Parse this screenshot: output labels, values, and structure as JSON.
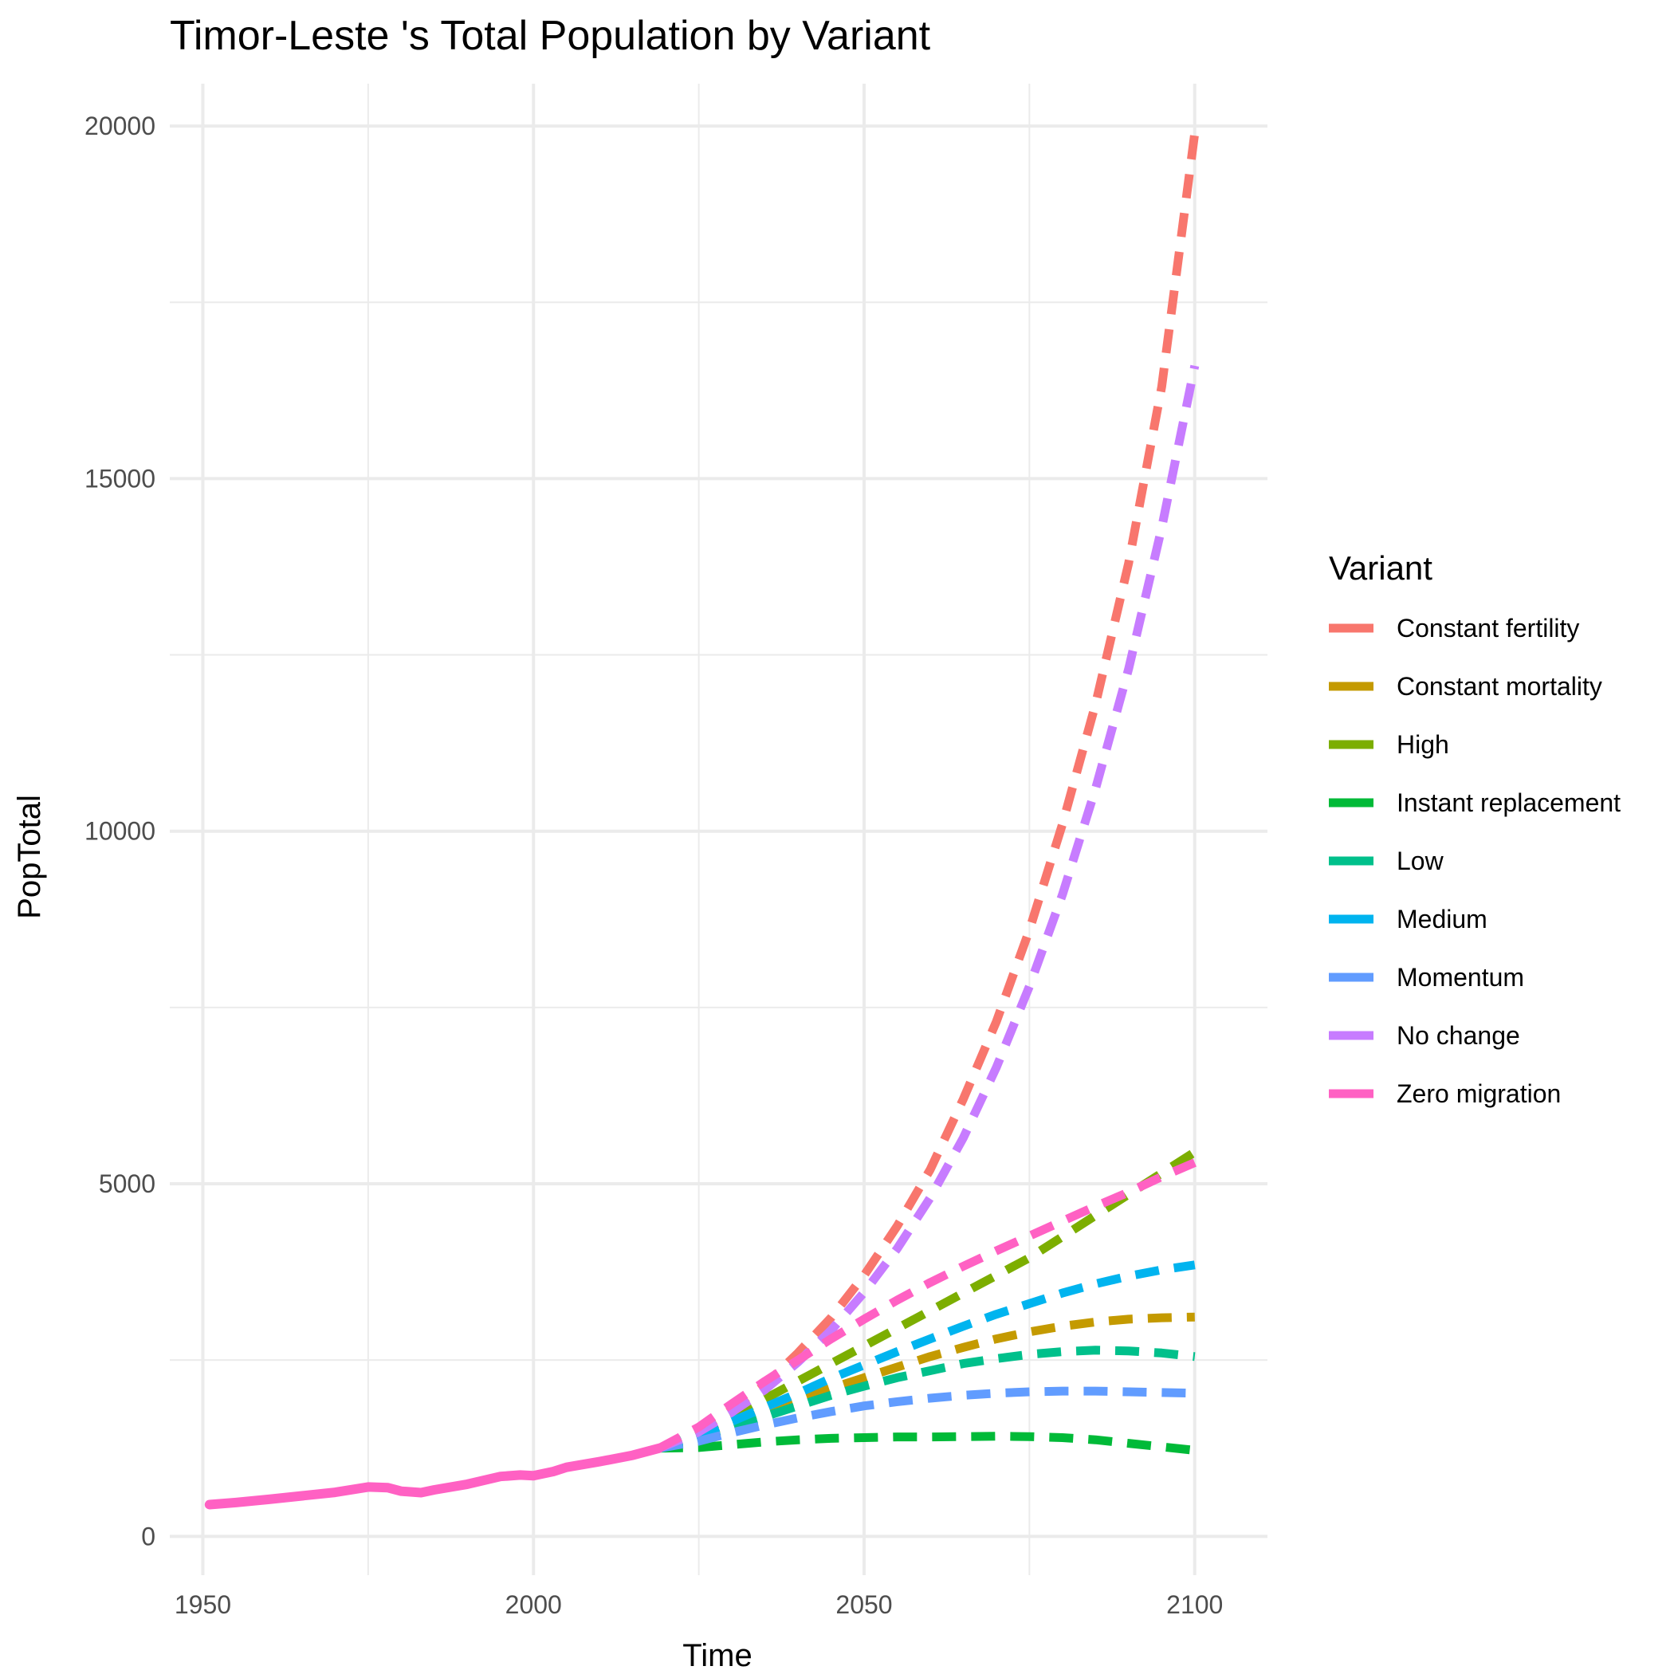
{
  "chart_data": {
    "type": "line",
    "title": "Timor-Leste 's Total Population by Variant",
    "xlabel": "Time",
    "ylabel": "PopTotal",
    "xlim": [
      1945,
      2111
    ],
    "ylim": [
      -550,
      20600
    ],
    "x_ticks": [
      1950,
      2000,
      2050,
      2100
    ],
    "x_tick_labels": [
      "1950",
      "2000",
      "2050",
      "2100"
    ],
    "y_ticks": [
      0,
      5000,
      10000,
      15000,
      20000
    ],
    "y_tick_labels": [
      "0",
      "5000",
      "10000",
      "15000",
      "20000"
    ],
    "grid": true,
    "legend": {
      "title": "Variant",
      "position": "right"
    },
    "history": {
      "name": "Zero migration",
      "x": [
        1951,
        1955,
        1960,
        1965,
        1970,
        1975,
        1978,
        1980,
        1983,
        1985,
        1990,
        1995,
        1998,
        2000,
        2003,
        2005,
        2010,
        2015,
        2019
      ],
      "y": [
        450,
        480,
        525,
        575,
        625,
        700,
        690,
        640,
        620,
        660,
        740,
        850,
        870,
        860,
        920,
        980,
        1060,
        1150,
        1250
      ]
    },
    "series": [
      {
        "name": "Constant fertility",
        "color": "#F8766D",
        "x": [
          2019,
          2025,
          2030,
          2035,
          2040,
          2045,
          2050,
          2055,
          2060,
          2065,
          2070,
          2075,
          2080,
          2085,
          2090,
          2095,
          2100
        ],
        "y": [
          1250,
          1500,
          1800,
          2150,
          2600,
          3100,
          3700,
          4400,
          5200,
          6200,
          7300,
          8600,
          10100,
          11800,
          13800,
          16300,
          19900
        ]
      },
      {
        "name": "Constant mortality",
        "color": "#C49A00",
        "x": [
          2019,
          2025,
          2030,
          2035,
          2040,
          2045,
          2050,
          2055,
          2060,
          2065,
          2070,
          2075,
          2080,
          2085,
          2090,
          2095,
          2100
        ],
        "y": [
          1250,
          1430,
          1600,
          1770,
          1940,
          2100,
          2250,
          2400,
          2550,
          2680,
          2800,
          2900,
          2980,
          3040,
          3080,
          3100,
          3110
        ]
      },
      {
        "name": "High",
        "color": "#7CAE00",
        "x": [
          2019,
          2025,
          2030,
          2035,
          2040,
          2045,
          2050,
          2055,
          2060,
          2065,
          2070,
          2075,
          2080,
          2085,
          2090,
          2095,
          2100
        ],
        "y": [
          1250,
          1470,
          1700,
          1950,
          2200,
          2450,
          2700,
          2950,
          3200,
          3450,
          3700,
          3950,
          4250,
          4550,
          4850,
          5150,
          5450
        ]
      },
      {
        "name": "Instant replacement",
        "color": "#00BA38",
        "x": [
          2019,
          2025,
          2030,
          2035,
          2040,
          2045,
          2050,
          2055,
          2060,
          2065,
          2070,
          2075,
          2080,
          2085,
          2090,
          2095,
          2100
        ],
        "y": [
          1250,
          1260,
          1300,
          1340,
          1370,
          1390,
          1400,
          1410,
          1410,
          1415,
          1420,
          1415,
          1400,
          1370,
          1320,
          1270,
          1220
        ]
      },
      {
        "name": "Low",
        "color": "#00C08B",
        "x": [
          2019,
          2025,
          2030,
          2035,
          2040,
          2045,
          2050,
          2055,
          2060,
          2065,
          2070,
          2075,
          2080,
          2085,
          2090,
          2095,
          2100
        ],
        "y": [
          1250,
          1400,
          1550,
          1700,
          1850,
          2000,
          2130,
          2250,
          2350,
          2450,
          2520,
          2580,
          2620,
          2640,
          2630,
          2600,
          2550
        ]
      },
      {
        "name": "Medium",
        "color": "#00B4EF",
        "x": [
          2019,
          2025,
          2030,
          2035,
          2040,
          2045,
          2050,
          2055,
          2060,
          2065,
          2070,
          2075,
          2080,
          2085,
          2090,
          2095,
          2100
        ],
        "y": [
          1250,
          1430,
          1630,
          1830,
          2030,
          2240,
          2430,
          2620,
          2800,
          2980,
          3150,
          3300,
          3450,
          3580,
          3690,
          3780,
          3850
        ]
      },
      {
        "name": "Momentum",
        "color": "#619CFF",
        "x": [
          2019,
          2025,
          2030,
          2035,
          2040,
          2045,
          2050,
          2055,
          2060,
          2065,
          2070,
          2075,
          2080,
          2085,
          2090,
          2095,
          2100
        ],
        "y": [
          1250,
          1350,
          1470,
          1580,
          1680,
          1770,
          1850,
          1910,
          1960,
          2000,
          2030,
          2050,
          2060,
          2060,
          2050,
          2040,
          2030
        ]
      },
      {
        "name": "No change",
        "color": "#C77CFF",
        "x": [
          2019,
          2025,
          2030,
          2035,
          2040,
          2045,
          2050,
          2055,
          2060,
          2065,
          2070,
          2075,
          2080,
          2085,
          2090,
          2095,
          2100
        ],
        "y": [
          1250,
          1480,
          1760,
          2080,
          2470,
          2920,
          3460,
          4080,
          4800,
          5650,
          6650,
          7800,
          9100,
          10600,
          12300,
          14300,
          16600
        ]
      },
      {
        "name": "Zero migration",
        "color": "#FF61C3",
        "x": [
          2019,
          2025,
          2030,
          2035,
          2040,
          2045,
          2050,
          2055,
          2060,
          2065,
          2070,
          2075,
          2080,
          2085,
          2090,
          2095,
          2100
        ],
        "y": [
          1250,
          1550,
          1880,
          2200,
          2500,
          2800,
          3080,
          3350,
          3600,
          3830,
          4050,
          4260,
          4470,
          4680,
          4880,
          5100,
          5300
        ]
      }
    ]
  }
}
